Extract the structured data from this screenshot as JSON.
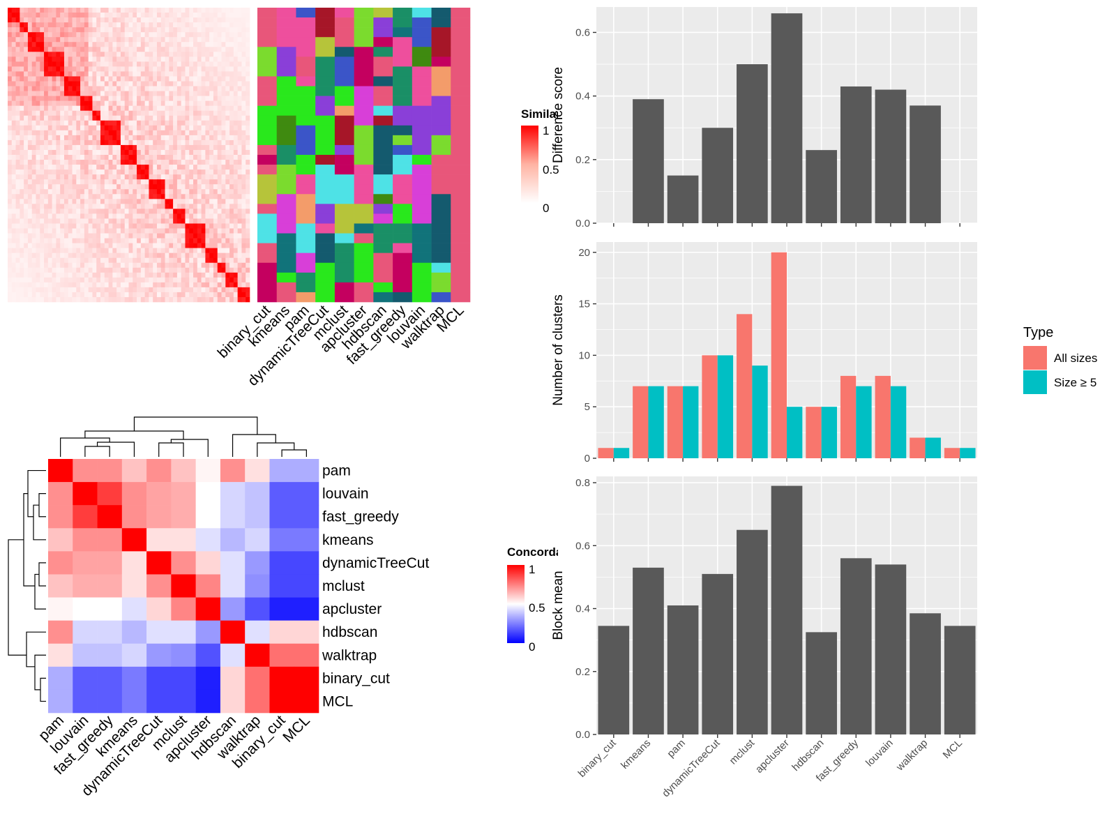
{
  "methods": [
    "binary_cut",
    "kmeans",
    "pam",
    "dynamicTreeCut",
    "mclust",
    "apcluster",
    "hdbscan",
    "fast_greedy",
    "louvain",
    "walktrap",
    "MCL"
  ],
  "colors": {
    "bar_gray": "#595959",
    "panel_bg": "#ebebeb",
    "grid": "#ffffff",
    "series_all": "#F8766D",
    "series_size5": "#00BFC4",
    "sim_high": "#ff0000",
    "sim_low": "#ffffff",
    "conc_low": "#0000ff"
  },
  "similarity_legend": {
    "title": "Similarity",
    "ticks": [
      "1",
      "0.5",
      "0"
    ]
  },
  "concordance_legend": {
    "title": "Concordance",
    "ticks": [
      "1",
      "0.5",
      "0"
    ]
  },
  "concordance_labels": [
    "pam",
    "louvain",
    "fast_greedy",
    "kmeans",
    "dynamicTreeCut",
    "mclust",
    "apcluster",
    "hdbscan",
    "walktrap",
    "binary_cut",
    "MCL"
  ],
  "concordance_matrix": [
    [
      1.0,
      0.72,
      0.72,
      0.62,
      0.72,
      0.62,
      0.52,
      0.72,
      0.56,
      0.34,
      0.34
    ],
    [
      0.72,
      1.0,
      0.88,
      0.72,
      0.68,
      0.66,
      0.5,
      0.42,
      0.38,
      0.18,
      0.18
    ],
    [
      0.72,
      0.88,
      1.0,
      0.72,
      0.68,
      0.66,
      0.5,
      0.42,
      0.38,
      0.18,
      0.18
    ],
    [
      0.62,
      0.72,
      0.72,
      1.0,
      0.56,
      0.56,
      0.44,
      0.36,
      0.42,
      0.24,
      0.24
    ],
    [
      0.72,
      0.68,
      0.68,
      0.56,
      1.0,
      0.72,
      0.58,
      0.44,
      0.3,
      0.14,
      0.14
    ],
    [
      0.62,
      0.66,
      0.66,
      0.56,
      0.72,
      1.0,
      0.74,
      0.44,
      0.28,
      0.14,
      0.14
    ],
    [
      0.52,
      0.5,
      0.5,
      0.44,
      0.58,
      0.74,
      1.0,
      0.3,
      0.16,
      0.06,
      0.06
    ],
    [
      0.72,
      0.42,
      0.42,
      0.36,
      0.44,
      0.44,
      0.3,
      1.0,
      0.44,
      0.58,
      0.58
    ],
    [
      0.56,
      0.38,
      0.38,
      0.42,
      0.3,
      0.28,
      0.16,
      0.44,
      1.0,
      0.78,
      0.78
    ],
    [
      0.34,
      0.18,
      0.18,
      0.24,
      0.14,
      0.14,
      0.06,
      0.58,
      0.78,
      1.0,
      1.0
    ],
    [
      0.34,
      0.18,
      0.18,
      0.24,
      0.14,
      0.14,
      0.06,
      0.58,
      0.78,
      1.0,
      1.0
    ]
  ],
  "chart_data": [
    {
      "type": "bar",
      "categories": [
        "binary_cut",
        "kmeans",
        "pam",
        "dynamicTreeCut",
        "mclust",
        "apcluster",
        "hdbscan",
        "fast_greedy",
        "louvain",
        "walktrap",
        "MCL"
      ],
      "values": [
        null,
        0.39,
        0.15,
        0.3,
        0.5,
        0.66,
        0.23,
        0.43,
        0.42,
        0.37,
        null
      ],
      "ylabel": "Difference score",
      "ylim": [
        0,
        0.68
      ],
      "yticks": [
        "0.0",
        "0.2",
        "0.4",
        "0.6"
      ],
      "grid": true
    },
    {
      "type": "bar",
      "categories": [
        "binary_cut",
        "kmeans",
        "pam",
        "dynamicTreeCut",
        "mclust",
        "apcluster",
        "hdbscan",
        "fast_greedy",
        "louvain",
        "walktrap",
        "MCL"
      ],
      "series": [
        {
          "name": "All sizes",
          "values": [
            1,
            7,
            7,
            10,
            14,
            20,
            5,
            8,
            8,
            2,
            1
          ]
        },
        {
          "name": "Size ≥ 5",
          "values": [
            1,
            7,
            7,
            10,
            9,
            5,
            5,
            7,
            7,
            2,
            1
          ]
        }
      ],
      "ylabel": "Number of clusters",
      "ylim": [
        0,
        21
      ],
      "yticks": [
        "0",
        "5",
        "10",
        "15",
        "20"
      ],
      "legend": {
        "title": "Type",
        "placement": "right"
      },
      "grid": true
    },
    {
      "type": "bar",
      "categories": [
        "binary_cut",
        "kmeans",
        "pam",
        "dynamicTreeCut",
        "mclust",
        "apcluster",
        "hdbscan",
        "fast_greedy",
        "louvain",
        "walktrap",
        "MCL"
      ],
      "values": [
        0.345,
        0.53,
        0.41,
        0.51,
        0.65,
        0.79,
        0.325,
        0.56,
        0.54,
        0.385,
        0.345
      ],
      "ylabel": "Block mean",
      "ylim": [
        0,
        0.82
      ],
      "yticks": [
        "0.0",
        "0.2",
        "0.4",
        "0.6",
        "0.8"
      ],
      "grid": true
    }
  ]
}
